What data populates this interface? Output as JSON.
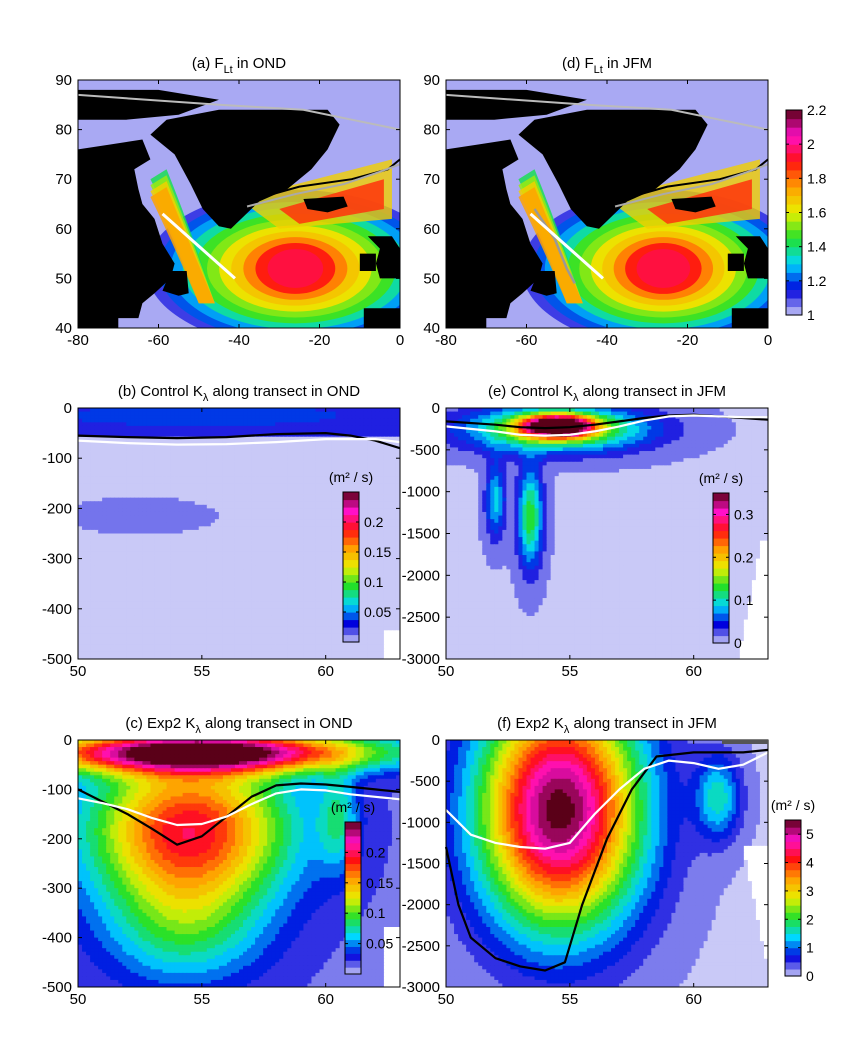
{
  "colormap": {
    "name": "jet-like: white-lavender, blue, cyan-green, yellow, orange, red, magenta, dark maroon",
    "stops": [
      "#c9c9f7",
      "#0000dd",
      "#00d7ff",
      "#22e02b",
      "#e8f000",
      "#ffa000",
      "#ff1010",
      "#ff10c8",
      "#5a0018"
    ],
    "land_color": "#000000",
    "background": "#ffffff"
  },
  "chart_data": [
    {
      "id": "a",
      "type": "heatmap",
      "title": "(a) F",
      "title_subscript": "Lt",
      "title_suffix": " in OND",
      "xlim": [
        -80,
        0
      ],
      "ylim": [
        40,
        90
      ],
      "x_ticks": [
        -80,
        -60,
        -40,
        -20,
        0
      ],
      "y_ticks": [
        40,
        50,
        60,
        70,
        80,
        90
      ],
      "colorbar": {
        "min": 1,
        "max": 2.2,
        "ticks": [
          1,
          1.2,
          1.4,
          1.6,
          1.8,
          2,
          2.2
        ],
        "label": ""
      },
      "transect": {
        "start": [
          -59,
          63
        ],
        "end": [
          -41,
          50
        ]
      },
      "field_max": 1.95
    },
    {
      "id": "d",
      "type": "heatmap",
      "title": "(d) F",
      "title_subscript": "Lt",
      "title_suffix": " in JFM",
      "xlim": [
        -80,
        0
      ],
      "ylim": [
        40,
        90
      ],
      "x_ticks": [
        -80,
        -60,
        -40,
        -20,
        0
      ],
      "y_ticks": [
        40,
        50,
        60,
        70,
        80,
        90
      ],
      "colorbar": {
        "min": 1,
        "max": 2.2,
        "ticks": [
          1,
          1.2,
          1.4,
          1.6,
          1.8,
          2,
          2.2
        ],
        "label": ""
      },
      "transect": {
        "start": [
          -59,
          63
        ],
        "end": [
          -41,
          50
        ]
      },
      "field_max": 1.95
    },
    {
      "id": "b",
      "type": "heatmap",
      "title": "(b) Control K",
      "title_subscript": "λ",
      "title_suffix": " along transect in OND",
      "xlim": [
        50,
        63
      ],
      "ylim": [
        -500,
        0
      ],
      "x_ticks": [
        50,
        55,
        60
      ],
      "y_ticks": [
        0,
        -100,
        -200,
        -300,
        -400,
        -500
      ],
      "colorbar": {
        "min": 0,
        "max": 0.25,
        "ticks": [
          0.05,
          0.1,
          0.15,
          0.2
        ],
        "label": "(m² / s)"
      },
      "peak": {
        "x": 55,
        "y": -15,
        "value": 0.04
      },
      "white_line": {
        "x": [
          50,
          52,
          54,
          56,
          58,
          60,
          62,
          63
        ],
        "y": [
          -65,
          -70,
          -73,
          -72,
          -68,
          -62,
          -62,
          -68
        ]
      },
      "black_line": {
        "x": [
          50,
          52,
          54,
          56,
          58,
          60,
          61,
          62,
          63
        ],
        "y": [
          -55,
          -58,
          -60,
          -58,
          -52,
          -50,
          -55,
          -65,
          -80
        ]
      }
    },
    {
      "id": "e",
      "type": "heatmap",
      "title": "(e) Control K",
      "title_subscript": "λ",
      "title_suffix": " along transect in JFM",
      "xlim": [
        50,
        63
      ],
      "ylim": [
        -3000,
        0
      ],
      "x_ticks": [
        50,
        55,
        60
      ],
      "y_ticks": [
        0,
        -500,
        -1000,
        -1500,
        -2000,
        -2500,
        -3000
      ],
      "colorbar": {
        "min": 0,
        "max": 0.35,
        "ticks": [
          0,
          0.1,
          0.2,
          0.3
        ],
        "label": "(m² / s)"
      },
      "peak": {
        "x": 54.5,
        "y": -200,
        "value": 0.35
      },
      "white_line": {
        "x": [
          50,
          52,
          53,
          54,
          55,
          56,
          57,
          58,
          59,
          60,
          61,
          62,
          63
        ],
        "y": [
          -220,
          -280,
          -320,
          -330,
          -320,
          -280,
          -220,
          -150,
          -100,
          -90,
          -100,
          -110,
          -110
        ]
      },
      "black_line": {
        "x": [
          50,
          52,
          53,
          54,
          55,
          56,
          57,
          58,
          59,
          60,
          61,
          62,
          63
        ],
        "y": [
          -160,
          -200,
          -230,
          -240,
          -230,
          -200,
          -160,
          -120,
          -90,
          -80,
          -100,
          -120,
          -140
        ]
      }
    },
    {
      "id": "c",
      "type": "heatmap",
      "title": "(c) Exp2 K",
      "title_subscript": "λ",
      "title_suffix": " along transect in OND",
      "xlim": [
        50,
        63
      ],
      "ylim": [
        -500,
        0
      ],
      "x_ticks": [
        50,
        55,
        60
      ],
      "y_ticks": [
        0,
        -100,
        -200,
        -300,
        -400,
        -500
      ],
      "colorbar": {
        "min": 0,
        "max": 0.25,
        "ticks": [
          0.05,
          0.1,
          0.15,
          0.2
        ],
        "label": "(m² / s)"
      },
      "peak": {
        "x": 54.5,
        "y": -25,
        "value": 0.25
      },
      "white_line": {
        "x": [
          50,
          51,
          52,
          53,
          54,
          55,
          56,
          57,
          58,
          59,
          60,
          61,
          62,
          63
        ],
        "y": [
          -118,
          -128,
          -140,
          -158,
          -172,
          -170,
          -155,
          -130,
          -108,
          -100,
          -102,
          -110,
          -115,
          -120
        ]
      },
      "black_line": {
        "x": [
          50,
          51,
          52,
          53,
          54,
          55,
          56,
          57,
          58,
          59,
          60,
          61,
          62,
          63
        ],
        "y": [
          -100,
          -125,
          -150,
          -180,
          -212,
          -195,
          -155,
          -115,
          -92,
          -88,
          -90,
          -95,
          -100,
          -105
        ]
      }
    },
    {
      "id": "f",
      "type": "heatmap",
      "title": "(f) Exp2 K",
      "title_subscript": "λ",
      "title_suffix": " along transect in JFM",
      "xlim": [
        50,
        63
      ],
      "ylim": [
        -3000,
        0
      ],
      "x_ticks": [
        50,
        55,
        60
      ],
      "y_ticks": [
        0,
        -500,
        -1000,
        -1500,
        -2000,
        -2500,
        -3000
      ],
      "colorbar": {
        "min": 0,
        "max": 5.5,
        "ticks": [
          0,
          1,
          2,
          3,
          4,
          5
        ],
        "label": "(m² / s)"
      },
      "peak": {
        "x": 54.5,
        "y": -850,
        "value": 5.2
      },
      "white_line": {
        "x": [
          50,
          51,
          52,
          53,
          54,
          55,
          56,
          57,
          58,
          59,
          60,
          61,
          62,
          63
        ],
        "y": [
          -850,
          -1150,
          -1250,
          -1300,
          -1320,
          -1250,
          -900,
          -600,
          -350,
          -250,
          -280,
          -350,
          -300,
          -150
        ]
      },
      "black_line": {
        "x": [
          50,
          50.5,
          51,
          52,
          53,
          54,
          54.8,
          55.5,
          56.5,
          57.5,
          58.5,
          60,
          61,
          62,
          63
        ],
        "y": [
          -1300,
          -2000,
          -2400,
          -2650,
          -2750,
          -2800,
          -2700,
          -2000,
          -1200,
          -600,
          -200,
          -150,
          -150,
          -150,
          -120
        ]
      }
    }
  ]
}
